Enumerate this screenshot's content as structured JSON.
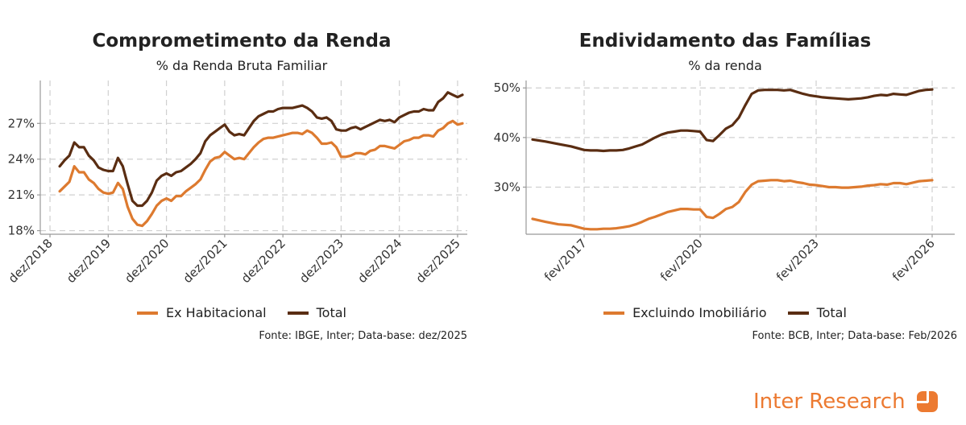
{
  "chart_data": [
    {
      "type": "line",
      "title": "Comprometimento da Renda",
      "subtitle": "% da Renda Bruta Familiar",
      "xlabel": "",
      "ylabel": "",
      "x_ticks": [
        {
          "t": 0,
          "label": "dez/2018"
        },
        {
          "t": 12,
          "label": "dez/2019"
        },
        {
          "t": 24,
          "label": "dez/2020"
        },
        {
          "t": 36,
          "label": "dez/2021"
        },
        {
          "t": 48,
          "label": "dez/2022"
        },
        {
          "t": 60,
          "label": "dez/2023"
        },
        {
          "t": 72,
          "label": "dez/2024"
        },
        {
          "t": 84,
          "label": "dez/2025"
        }
      ],
      "xlim": [
        -2,
        86
      ],
      "y_ticks": [
        18,
        21,
        24,
        27
      ],
      "tick_suffix": "%",
      "ylim": [
        17.7,
        30.6
      ],
      "grid": true,
      "legend_position": "bottom",
      "series": [
        {
          "name": "Ex Habitacional",
          "color": "#dd7a2f",
          "x": [
            2,
            3,
            4,
            5,
            6,
            7,
            8,
            9,
            10,
            11,
            12,
            13,
            14,
            15,
            16,
            17,
            18,
            19,
            20,
            21,
            22,
            23,
            24,
            25,
            26,
            27,
            28,
            29,
            30,
            31,
            32,
            33,
            34,
            35,
            36,
            37,
            38,
            39,
            40,
            41,
            42,
            43,
            44,
            45,
            46,
            47,
            48,
            49,
            50,
            51,
            52,
            53,
            54,
            55,
            56,
            57,
            58,
            59,
            60,
            61,
            62,
            63,
            64,
            65,
            66,
            67,
            68,
            69,
            70,
            71,
            72,
            73,
            74,
            75,
            76,
            77,
            78,
            79,
            80,
            81,
            82,
            83,
            84,
            85
          ],
          "y": [
            21.3,
            21.7,
            22.1,
            23.4,
            22.9,
            22.9,
            22.3,
            22.0,
            21.5,
            21.2,
            21.1,
            21.2,
            22.0,
            21.5,
            20.0,
            19.0,
            18.5,
            18.4,
            18.8,
            19.4,
            20.1,
            20.5,
            20.7,
            20.5,
            20.9,
            20.9,
            21.3,
            21.6,
            21.9,
            22.3,
            23.1,
            23.8,
            24.1,
            24.2,
            24.6,
            24.3,
            24.0,
            24.1,
            24.0,
            24.5,
            25.0,
            25.4,
            25.7,
            25.8,
            25.8,
            25.9,
            26.0,
            26.1,
            26.2,
            26.2,
            26.1,
            26.4,
            26.2,
            25.8,
            25.3,
            25.3,
            25.4,
            25.0,
            24.2,
            24.2,
            24.3,
            24.5,
            24.5,
            24.4,
            24.7,
            24.8,
            25.1,
            25.1,
            25.0,
            24.9,
            25.2,
            25.5,
            25.6,
            25.8,
            25.8,
            26.0,
            26.0,
            25.9,
            26.4,
            26.6,
            27.0,
            27.2,
            26.9,
            27.0
          ]
        },
        {
          "name": "Total",
          "color": "#5a2d12",
          "x": [
            2,
            3,
            4,
            5,
            6,
            7,
            8,
            9,
            10,
            11,
            12,
            13,
            14,
            15,
            16,
            17,
            18,
            19,
            20,
            21,
            22,
            23,
            24,
            25,
            26,
            27,
            28,
            29,
            30,
            31,
            32,
            33,
            34,
            35,
            36,
            37,
            38,
            39,
            40,
            41,
            42,
            43,
            44,
            45,
            46,
            47,
            48,
            49,
            50,
            51,
            52,
            53,
            54,
            55,
            56,
            57,
            58,
            59,
            60,
            61,
            62,
            63,
            64,
            65,
            66,
            67,
            68,
            69,
            70,
            71,
            72,
            73,
            74,
            75,
            76,
            77,
            78,
            79,
            80,
            81,
            82,
            83,
            84,
            85
          ],
          "y": [
            23.4,
            23.9,
            24.3,
            25.4,
            25.0,
            25.0,
            24.3,
            23.9,
            23.3,
            23.1,
            23.0,
            23.0,
            24.1,
            23.4,
            21.9,
            20.5,
            20.1,
            20.1,
            20.5,
            21.2,
            22.2,
            22.6,
            22.8,
            22.6,
            22.9,
            23.0,
            23.3,
            23.6,
            24.0,
            24.5,
            25.5,
            26.0,
            26.3,
            26.6,
            26.9,
            26.3,
            26.0,
            26.1,
            26.0,
            26.6,
            27.2,
            27.6,
            27.8,
            28.0,
            28.0,
            28.2,
            28.3,
            28.3,
            28.3,
            28.4,
            28.5,
            28.3,
            28.0,
            27.5,
            27.4,
            27.5,
            27.2,
            26.5,
            26.4,
            26.4,
            26.6,
            26.7,
            26.5,
            26.7,
            26.9,
            27.1,
            27.3,
            27.2,
            27.3,
            27.1,
            27.5,
            27.7,
            27.9,
            28.0,
            28.0,
            28.2,
            28.1,
            28.1,
            28.8,
            29.1,
            29.6,
            29.4,
            29.2,
            29.4
          ]
        }
      ],
      "source": "Fonte: IBGE, Inter; Data-base: dez/2025"
    },
    {
      "type": "line",
      "title": "Endividamento das Famílias",
      "subtitle": "% da renda",
      "xlabel": "",
      "ylabel": "",
      "x_ticks": [
        {
          "t": 0,
          "label": "fev/2017"
        },
        {
          "t": 36,
          "label": "fev/2020"
        },
        {
          "t": 72,
          "label": "fev/2023"
        },
        {
          "t": 108,
          "label": "fev/2026"
        }
      ],
      "xlim": [
        -18,
        115
      ],
      "y_ticks": [
        30,
        40,
        50
      ],
      "tick_suffix": "%",
      "ylim": [
        20.5,
        51.5
      ],
      "grid": true,
      "legend_position": "bottom",
      "series": [
        {
          "name": "Excluindo Imobiliário",
          "color": "#dd7a2f",
          "x": [
            -16,
            -12,
            -8,
            -4,
            0,
            2,
            4,
            6,
            8,
            10,
            12,
            14,
            16,
            18,
            20,
            22,
            24,
            26,
            28,
            30,
            32,
            34,
            36,
            38,
            40,
            42,
            44,
            46,
            48,
            50,
            52,
            54,
            56,
            58,
            60,
            62,
            64,
            66,
            68,
            70,
            72,
            74,
            76,
            78,
            80,
            82,
            84,
            86,
            88,
            90,
            92,
            94,
            96,
            98,
            100,
            102,
            104,
            106,
            108
          ],
          "y": [
            23.6,
            23.0,
            22.5,
            22.3,
            21.6,
            21.5,
            21.5,
            21.6,
            21.6,
            21.7,
            21.9,
            22.1,
            22.5,
            23.0,
            23.6,
            24.0,
            24.5,
            25.0,
            25.3,
            25.6,
            25.6,
            25.5,
            25.5,
            24.0,
            23.8,
            24.6,
            25.6,
            26.0,
            27.0,
            29.0,
            30.5,
            31.2,
            31.3,
            31.4,
            31.4,
            31.2,
            31.3,
            31.0,
            30.8,
            30.5,
            30.4,
            30.2,
            30.0,
            30.0,
            29.9,
            29.9,
            30.0,
            30.1,
            30.3,
            30.4,
            30.6,
            30.5,
            30.8,
            30.8,
            30.6,
            30.9,
            31.2,
            31.3,
            31.4
          ]
        },
        {
          "name": "Total",
          "color": "#5a2d12",
          "x": [
            -16,
            -12,
            -8,
            -4,
            0,
            2,
            4,
            6,
            8,
            10,
            12,
            14,
            16,
            18,
            20,
            22,
            24,
            26,
            28,
            30,
            32,
            34,
            36,
            38,
            40,
            42,
            44,
            46,
            48,
            50,
            52,
            54,
            56,
            58,
            60,
            62,
            64,
            66,
            68,
            70,
            72,
            74,
            76,
            78,
            80,
            82,
            84,
            86,
            88,
            90,
            92,
            94,
            96,
            98,
            100,
            102,
            104,
            106,
            108
          ],
          "y": [
            39.6,
            39.2,
            38.7,
            38.2,
            37.5,
            37.4,
            37.4,
            37.3,
            37.4,
            37.4,
            37.5,
            37.8,
            38.2,
            38.6,
            39.3,
            40.0,
            40.6,
            41.0,
            41.2,
            41.4,
            41.4,
            41.3,
            41.2,
            39.5,
            39.3,
            40.5,
            41.8,
            42.5,
            44.0,
            46.5,
            48.8,
            49.5,
            49.6,
            49.6,
            49.6,
            49.5,
            49.6,
            49.2,
            48.8,
            48.5,
            48.3,
            48.1,
            48.0,
            47.9,
            47.8,
            47.7,
            47.8,
            47.9,
            48.1,
            48.4,
            48.6,
            48.5,
            48.8,
            48.7,
            48.6,
            49.0,
            49.4,
            49.6,
            49.7
          ]
        }
      ],
      "source": "Fonte: BCB, Inter; Data-base: Feb/2026"
    }
  ],
  "brand": {
    "name": "Inter Research",
    "logo_icon": "inter-logo-icon",
    "color": "#ec7a31"
  }
}
